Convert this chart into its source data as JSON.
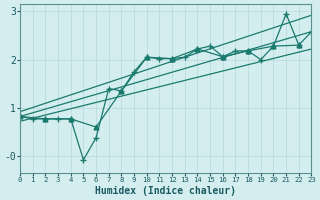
{
  "xlabel": "Humidex (Indice chaleur)",
  "bg_color": "#d4eef0",
  "grid_color": "#b8d8dc",
  "line_color": "#1a7a6e",
  "xlim": [
    0,
    23
  ],
  "ylim": [
    -0.35,
    3.15
  ],
  "xtick_labels": [
    "0",
    "1",
    "2",
    "3",
    "4",
    "5",
    "6",
    "7",
    "8",
    "9",
    "10",
    "11",
    "12",
    "13",
    "14",
    "15",
    "16",
    "17",
    "18",
    "19",
    "20",
    "21",
    "22",
    "23"
  ],
  "ytick_values": [
    0,
    1,
    2,
    3
  ],
  "ytick_labels": [
    "-0",
    "1",
    "2",
    "3"
  ],
  "series": [
    {
      "x": [
        0,
        1,
        2,
        3,
        4,
        5,
        6,
        7,
        8,
        9,
        10,
        11,
        12,
        13,
        14,
        15,
        16,
        17,
        18,
        19,
        20,
        21,
        22,
        23
      ],
      "y": [
        0.82,
        0.77,
        0.77,
        0.77,
        0.77,
        -0.08,
        0.38,
        1.4,
        1.35,
        1.75,
        2.05,
        2.02,
        2.02,
        2.05,
        2.22,
        2.28,
        2.06,
        2.18,
        2.18,
        2.0,
        2.28,
        2.95,
        2.3,
        2.58
      ],
      "marker": "+",
      "markersize": 4,
      "linewidth": 0.9,
      "linestyle": "-"
    },
    {
      "x": [
        0,
        2,
        4,
        6,
        8,
        10,
        12,
        14,
        16,
        18,
        20,
        22
      ],
      "y": [
        0.82,
        0.77,
        0.77,
        0.6,
        1.35,
        2.05,
        2.02,
        2.22,
        2.06,
        2.18,
        2.28,
        2.3
      ],
      "marker": "^",
      "markersize": 3.5,
      "linewidth": 0.9,
      "linestyle": "-"
    },
    {
      "x": [
        0,
        23
      ],
      "y": [
        0.82,
        2.58
      ],
      "marker": null,
      "markersize": 0,
      "linewidth": 0.9,
      "linestyle": "-"
    },
    {
      "x": [
        0,
        23
      ],
      "y": [
        0.72,
        2.22
      ],
      "marker": null,
      "markersize": 0,
      "linewidth": 0.9,
      "linestyle": "-"
    },
    {
      "x": [
        0,
        23
      ],
      "y": [
        0.92,
        2.92
      ],
      "marker": null,
      "markersize": 0,
      "linewidth": 0.9,
      "linestyle": "-"
    }
  ]
}
